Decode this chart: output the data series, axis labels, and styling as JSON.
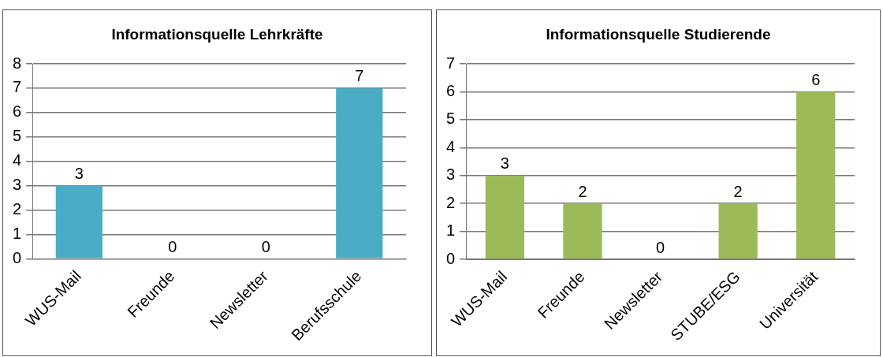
{
  "chart_data": [
    {
      "type": "bar",
      "title": "Informationsquelle Lehrkräfte",
      "categories": [
        "WUS-Mail",
        "Freunde",
        "Newsletter",
        "Berufsschule"
      ],
      "values": [
        3,
        0,
        0,
        7
      ],
      "color": "#4bacc6",
      "ylim": [
        0,
        8
      ],
      "yticks": [
        0,
        1,
        2,
        3,
        4,
        5,
        6,
        7,
        8
      ],
      "grid": "y",
      "legend": false,
      "data_labels": true
    },
    {
      "type": "bar",
      "title": "Informationsquelle Studierende",
      "categories": [
        "WUS-Mail",
        "Freunde",
        "Newsletter",
        "STUBE/ESG",
        "Universität"
      ],
      "values": [
        3,
        2,
        0,
        2,
        6
      ],
      "color": "#9bbb59",
      "ylim": [
        0,
        7
      ],
      "yticks": [
        0,
        1,
        2,
        3,
        4,
        5,
        6,
        7
      ],
      "grid": "y",
      "legend": false,
      "data_labels": true
    }
  ]
}
